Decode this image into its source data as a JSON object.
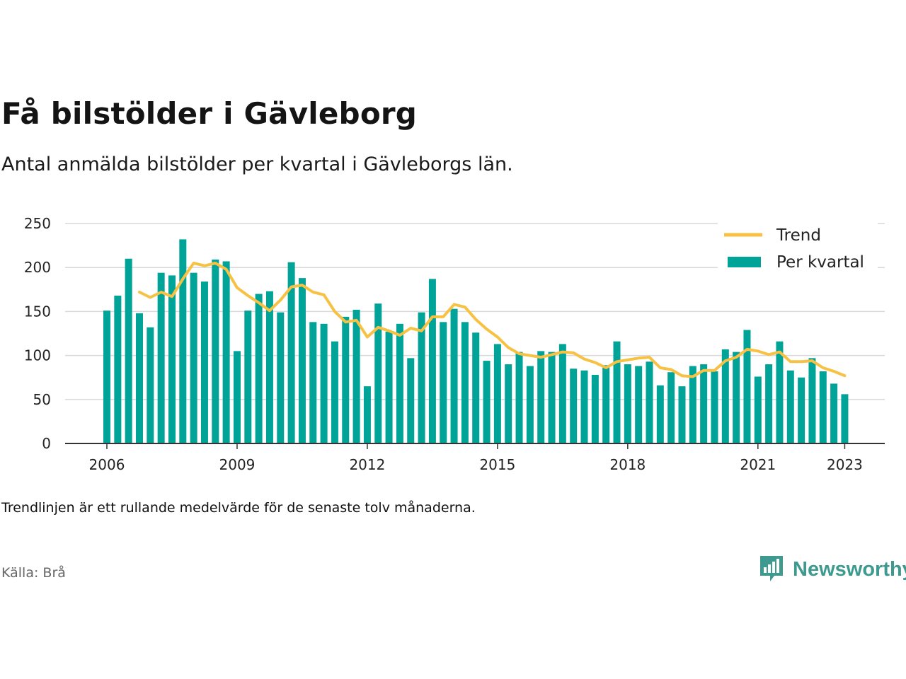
{
  "header": {
    "title": "Få bilstölder i Gävleborg",
    "subtitle": "Antal anmälda bilstölder per kvartal i Gävleborgs län."
  },
  "footer": {
    "note": "Trendlinjen är ett rullande medelvärde för de senaste tolv månaderna.",
    "source": "Källa: Brå",
    "brand": "Newsworthy"
  },
  "colors": {
    "bars": "#00a398",
    "trend": "#f7c144",
    "grid": "#d9d9d9",
    "axis": "#333333",
    "brand": "#3e9a8e"
  },
  "icons": {
    "brand_logo": "bar-chart-speech-bubble-icon"
  },
  "chart_data": {
    "type": "bar",
    "xlabel": "",
    "ylabel": "",
    "ylim": [
      0,
      250
    ],
    "yticks": [
      0,
      50,
      100,
      150,
      200,
      250
    ],
    "xticks": [
      "2006",
      "2009",
      "2012",
      "2015",
      "2018",
      "2021",
      "2023"
    ],
    "grid": true,
    "legend_position": "top-right",
    "legend": [
      "Trend",
      "Per kvartal"
    ],
    "categories": [
      "2006 Q1",
      "2006 Q2",
      "2006 Q3",
      "2006 Q4",
      "2007 Q1",
      "2007 Q2",
      "2007 Q3",
      "2007 Q4",
      "2008 Q1",
      "2008 Q2",
      "2008 Q3",
      "2008 Q4",
      "2009 Q1",
      "2009 Q2",
      "2009 Q3",
      "2009 Q4",
      "2010 Q1",
      "2010 Q2",
      "2010 Q3",
      "2010 Q4",
      "2011 Q1",
      "2011 Q2",
      "2011 Q3",
      "2011 Q4",
      "2012 Q1",
      "2012 Q2",
      "2012 Q3",
      "2012 Q4",
      "2013 Q1",
      "2013 Q2",
      "2013 Q3",
      "2013 Q4",
      "2014 Q1",
      "2014 Q2",
      "2014 Q3",
      "2014 Q4",
      "2015 Q1",
      "2015 Q2",
      "2015 Q3",
      "2015 Q4",
      "2016 Q1",
      "2016 Q2",
      "2016 Q3",
      "2016 Q4",
      "2017 Q1",
      "2017 Q2",
      "2017 Q3",
      "2017 Q4",
      "2018 Q1",
      "2018 Q2",
      "2018 Q3",
      "2018 Q4",
      "2019 Q1",
      "2019 Q2",
      "2019 Q3",
      "2019 Q4",
      "2020 Q1",
      "2020 Q2",
      "2020 Q3",
      "2020 Q4",
      "2021 Q1",
      "2021 Q2",
      "2021 Q3",
      "2021 Q4",
      "2022 Q1",
      "2022 Q2",
      "2022 Q3",
      "2022 Q4",
      "2023 Q1"
    ],
    "series": [
      {
        "name": "Per kvartal",
        "type": "bar",
        "values": [
          151,
          168,
          210,
          148,
          132,
          194,
          191,
          232,
          194,
          184,
          209,
          207,
          105,
          151,
          170,
          173,
          149,
          206,
          188,
          138,
          136,
          116,
          144,
          152,
          65,
          159,
          127,
          136,
          97,
          149,
          187,
          138,
          153,
          138,
          126,
          94,
          113,
          90,
          104,
          88,
          105,
          104,
          113,
          85,
          83,
          78,
          89,
          116,
          90,
          88,
          93,
          66,
          81,
          65,
          88,
          90,
          82,
          107,
          104,
          129,
          76,
          90,
          116,
          83,
          75,
          97,
          82,
          68,
          56
        ]
      },
      {
        "name": "Trend",
        "type": "line",
        "values": [
          null,
          null,
          null,
          172,
          166,
          172,
          167,
          187,
          205,
          202,
          205,
          198,
          177,
          168,
          160,
          151,
          163,
          178,
          180,
          172,
          169,
          150,
          138,
          140,
          121,
          132,
          128,
          123,
          131,
          128,
          144,
          144,
          158,
          155,
          141,
          130,
          121,
          109,
          102,
          100,
          98,
          101,
          104,
          103,
          96,
          92,
          86,
          93,
          95,
          97,
          98,
          86,
          84,
          77,
          76,
          83,
          83,
          94,
          98,
          107,
          105,
          101,
          104,
          93,
          93,
          94,
          86,
          82,
          77
        ]
      }
    ]
  }
}
